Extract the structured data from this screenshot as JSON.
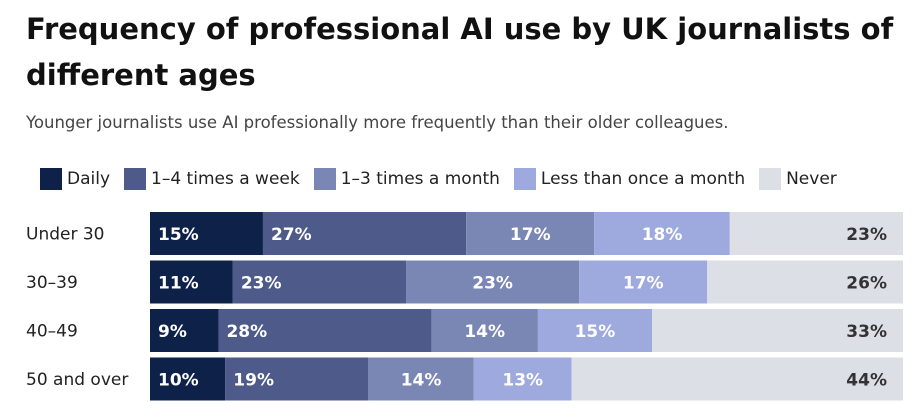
{
  "chart_data": {
    "type": "bar",
    "orientation": "horizontal",
    "stacked": true,
    "title": "Frequency of professional AI use by UK journalists of different ages",
    "subtitle": "Younger journalists use AI professionally more frequently than their older colleagues.",
    "legend_position": "top",
    "grid": false,
    "categories": [
      "Under 30",
      "30–39",
      "40–49",
      "50 and over"
    ],
    "series": [
      {
        "name": "Daily",
        "color": "#0e2148",
        "values": [
          15,
          11,
          9,
          10
        ],
        "labels": [
          "15%",
          "11%",
          "9%",
          "10%"
        ]
      },
      {
        "name": "1–4 times a week",
        "color": "#4d5a8a",
        "values": [
          27,
          23,
          28,
          19
        ],
        "labels": [
          "27%",
          "23%",
          "28%",
          "19%"
        ]
      },
      {
        "name": "1–3 times a month",
        "color": "#7a87b5",
        "values": [
          17,
          23,
          14,
          14
        ],
        "labels": [
          "17%",
          "23%",
          "14%",
          "14%"
        ]
      },
      {
        "name": "Less than once a month",
        "color": "#9eaade",
        "values": [
          18,
          17,
          15,
          13
        ],
        "labels": [
          "18%",
          "17%",
          "15%",
          "13%"
        ]
      },
      {
        "name": "Never",
        "color": "#dcdfe5",
        "values": [
          23,
          26,
          33,
          44
        ],
        "labels": [
          "23%",
          "26%",
          "33%",
          "44%"
        ]
      }
    ]
  }
}
